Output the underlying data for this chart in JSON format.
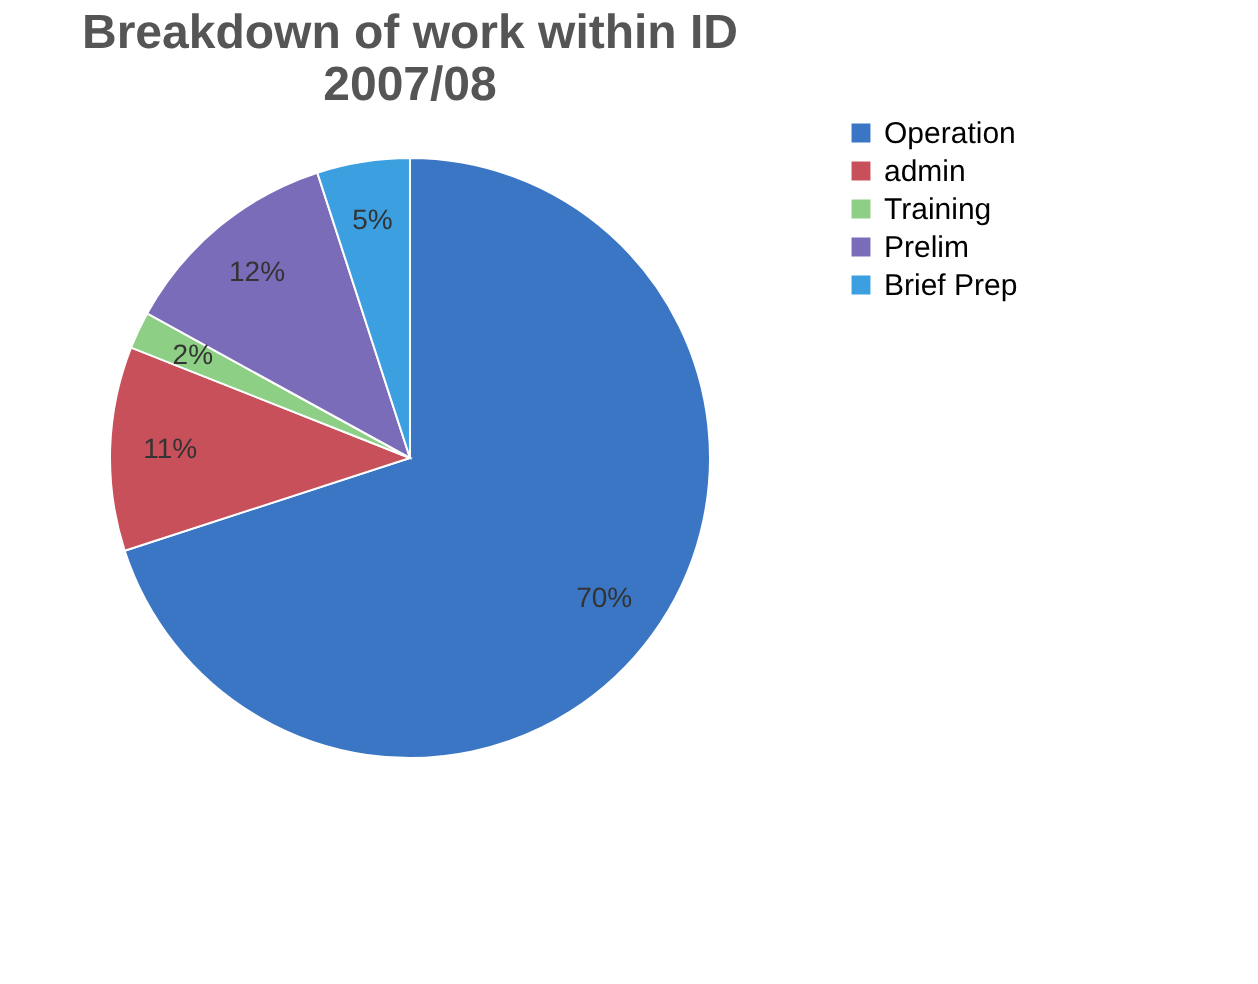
{
  "chart_data": {
    "type": "pie",
    "title": [
      "Breakdown of work within ID",
      "2007/08"
    ],
    "categories": [
      "Operation",
      "admin",
      "Training",
      "Prelim",
      "Brief Prep"
    ],
    "values": [
      70,
      11,
      2,
      12,
      5
    ],
    "colors": [
      "#3b76c4",
      "#c8505a",
      "#8ecf86",
      "#7a6cb8",
      "#3b9fe0"
    ],
    "value_labels": [
      "70%",
      "11%",
      "2%",
      "12%",
      "5%"
    ],
    "legend": "right"
  }
}
